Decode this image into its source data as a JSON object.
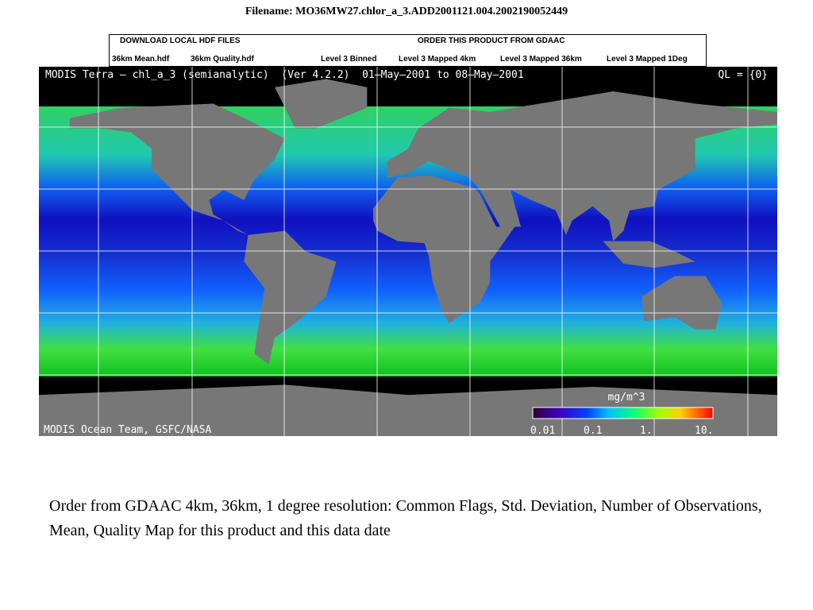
{
  "header": {
    "filename": "Filename: MO36MW27.chlor_a_3.ADD2001121.004.2002190052449"
  },
  "links": {
    "download_heading": "DOWNLOAD LOCAL HDF FILES",
    "order_heading": "ORDER THIS PRODUCT FROM GDAAC",
    "items": [
      "36km Mean.hdf",
      "36km Quality.hdf",
      "Level 3 Binned",
      "Level 3 Mapped 4km",
      "Level 3 Mapped 36km",
      "Level 3 Mapped 1Deg"
    ]
  },
  "map": {
    "title": "MODIS Terra – chl_a_3 (semianalytic)  (Ver 4.2.2)  01–May–2001 to 08–May–2001",
    "ql": "QL = {0}",
    "credit": "MODIS Ocean Team, GSFC/NASA",
    "unit": "mg/m^3",
    "colorbar_labels": [
      "0.01",
      "0.1",
      "1.",
      "10."
    ]
  },
  "footer": {
    "text": "Order from GDAAC 4km, 36km, 1 degree resolution: Common Flags, Std. Deviation, Number of Observations, Mean, Quality Map for this product and this data date"
  }
}
